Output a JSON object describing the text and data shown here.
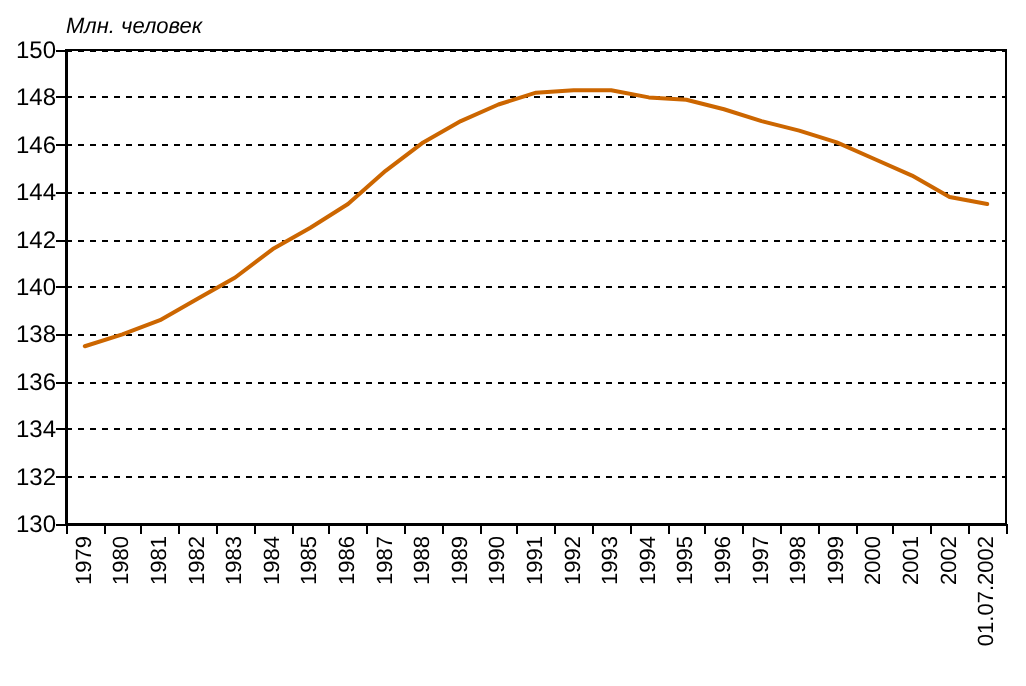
{
  "chart_data": {
    "type": "line",
    "ylabel": "Млн. человек",
    "categories": [
      "1979",
      "1980",
      "1981",
      "1982",
      "1983",
      "1984",
      "1985",
      "1986",
      "1987",
      "1988",
      "1989",
      "1990",
      "1991",
      "1992",
      "1993",
      "1994",
      "1995",
      "1996",
      "1997",
      "1998",
      "1999",
      "2000",
      "2001",
      "2002",
      "01.07.2002"
    ],
    "series": [
      {
        "color": "#cc6600",
        "values": [
          137.5,
          138.0,
          138.6,
          139.5,
          140.4,
          141.6,
          142.5,
          143.5,
          144.9,
          146.1,
          147.0,
          147.7,
          148.2,
          148.3,
          148.3,
          148.0,
          147.9,
          147.5,
          147.0,
          146.6,
          146.1,
          145.4,
          144.7,
          143.8,
          143.5
        ]
      }
    ],
    "ylim": [
      130,
      150
    ],
    "yticks": [
      130,
      132,
      134,
      136,
      138,
      140,
      142,
      144,
      146,
      148,
      150
    ],
    "grid": "y",
    "marker": "none",
    "line_style": "solid"
  }
}
